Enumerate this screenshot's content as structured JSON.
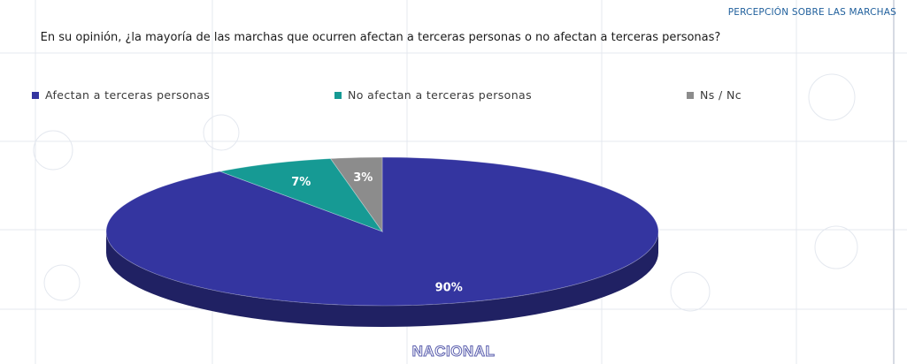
{
  "header": {
    "section": "PERCEPCIÓN SOBRE LAS MARCHAS"
  },
  "chart_data": {
    "type": "pie",
    "title": "En su opinión, ¿la mayoría de las marchas que ocurren afectan a terceras personas o no afectan a terceras personas?",
    "categories": [
      "Afectan a terceras personas",
      "No afectan a terceras personas",
      "Ns / Nc"
    ],
    "values": [
      90,
      7,
      3
    ],
    "labels": [
      "90%",
      "7%",
      "3%"
    ],
    "colors": [
      "#3435a0",
      "#169a94",
      "#8c8c8c"
    ],
    "legend": "top",
    "grid": false
  },
  "footer": {
    "region": "NACIONAL"
  }
}
